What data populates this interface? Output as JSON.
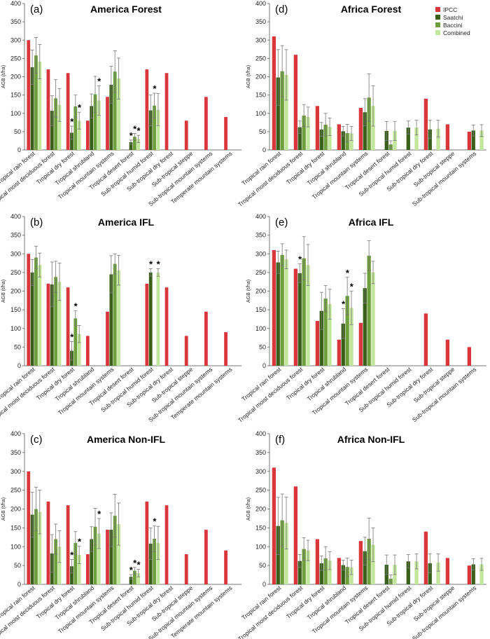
{
  "legend": [
    {
      "name": "IPCC",
      "color": "#d9373c"
    },
    {
      "name": "Saatchi",
      "color": "#3a5f1a"
    },
    {
      "name": "Baccini",
      "color": "#6f9e3d"
    },
    {
      "name": "Combined",
      "color": "#c3e69d"
    }
  ],
  "chart_data": [
    {
      "type": "bar",
      "panel_label": "(a)",
      "title": "America Forest",
      "ylabel": "AGB (t/ha)",
      "ylim": [
        0,
        400
      ],
      "yticks": [
        "0",
        "50",
        "100",
        "150",
        "200",
        "250",
        "300",
        "350",
        "400"
      ],
      "categories": [
        "Tropical rain forest",
        "Tropical moist deciduous forest",
        "Tropical dry forest",
        "Tropical shrubland",
        "Tropical mountain systems",
        "Tropical desert forest",
        "Sub-tropical humid forest",
        "Sub-tropical dry forest",
        "Sub-tropical steppe",
        "Sub-tropical mountain systems",
        "Temperate mountain systems"
      ],
      "series": [
        {
          "name": "IPCC",
          "values": [
            300,
            220,
            210,
            80,
            145,
            null,
            220,
            210,
            80,
            145,
            90
          ]
        },
        {
          "name": "Saatchi",
          "values": [
            226,
            107,
            47,
            120,
            178,
            21,
            108,
            null,
            null,
            null,
            null
          ],
          "err": [
            47,
            41,
            18,
            33,
            51,
            6,
            42,
            null,
            null,
            null,
            null
          ],
          "sig": [
            false,
            false,
            true,
            false,
            false,
            true,
            false,
            false,
            false,
            false,
            false
          ]
        },
        {
          "name": "Baccini",
          "values": [
            258,
            141,
            119,
            152,
            214,
            36,
            121,
            null,
            null,
            null,
            null
          ],
          "err": [
            49,
            51,
            31,
            49,
            57,
            9,
            34,
            null,
            null,
            null,
            null
          ],
          "sig": [
            false,
            false,
            false,
            false,
            false,
            true,
            true,
            false,
            false,
            false,
            false
          ]
        },
        {
          "name": "Combined",
          "values": [
            241,
            123,
            80,
            135,
            195,
            30,
            110,
            null,
            null,
            null,
            null
          ],
          "err": [
            47,
            45,
            23,
            40,
            56,
            10,
            44,
            null,
            null,
            null,
            null
          ],
          "sig": [
            false,
            false,
            true,
            true,
            false,
            true,
            false,
            false,
            false,
            false,
            false
          ]
        }
      ]
    },
    {
      "type": "bar",
      "panel_label": "(d)",
      "title": "Africa Forest",
      "ylabel": "AGB (t/ha)",
      "ylim": [
        0,
        400
      ],
      "yticks": [
        "0",
        "50",
        "100",
        "150",
        "200",
        "250",
        "300",
        "350",
        "400"
      ],
      "categories": [
        "Tropical rain forest",
        "Tropical moist deciduous forest",
        "Tropical dry forest",
        "Tropical shrubland",
        "Tropical mountain systems",
        "Tropical desert forest",
        "Sub-tropical humid forest",
        "Sub-tropical dry forest",
        "Sub-tropical steppe",
        "Sub-tropical mountain systems"
      ],
      "series": [
        {
          "name": "IPCC",
          "values": [
            310,
            260,
            120,
            70,
            115,
            null,
            null,
            140,
            70,
            50
          ]
        },
        {
          "name": "Saatchi",
          "values": [
            198,
            62,
            56,
            51,
            103,
            52,
            61,
            56,
            null,
            53
          ],
          "err": [
            76,
            17,
            19,
            13,
            37,
            26,
            18,
            25,
            null,
            15
          ]
        },
        {
          "name": "Baccini",
          "values": [
            215,
            94,
            69,
            46,
            143,
            15,
            null,
            null,
            null,
            null
          ],
          "err": [
            70,
            30,
            31,
            24,
            65,
            10,
            null,
            null,
            null,
            null
          ]
        },
        {
          "name": "Combined",
          "values": [
            205,
            90,
            63,
            45,
            120,
            52,
            61,
            58,
            null,
            53
          ],
          "err": [
            69,
            27,
            24,
            19,
            55,
            26,
            20,
            23,
            null,
            16
          ]
        }
      ]
    },
    {
      "type": "bar",
      "panel_label": "(b)",
      "title": "America IFL",
      "ylabel": "AGB (t/ha)",
      "ylim": [
        0,
        400
      ],
      "yticks": [
        "0",
        "50",
        "100",
        "150",
        "200",
        "250",
        "300",
        "350",
        "400"
      ],
      "categories": [
        "Tropical rain forest",
        "Tropical moist deciduous forest",
        "Tropical dry forest",
        "Tropical shrubland",
        "Tropical mountain systems",
        "Tropical desert forest",
        "Sub-tropical humid forest",
        "Sub-tropical dry forest",
        "Sub-tropical steppe",
        "Sub-tropical mountain systems",
        "Temperate mountain systems"
      ],
      "series": [
        {
          "name": "IPCC",
          "values": [
            300,
            220,
            210,
            80,
            145,
            null,
            220,
            210,
            80,
            145,
            90
          ]
        },
        {
          "name": "Saatchi",
          "values": [
            250,
            218,
            40,
            null,
            245,
            null,
            250,
            null,
            null,
            null,
            null
          ],
          "err": [
            35,
            60,
            25,
            null,
            50,
            null,
            10,
            null,
            null,
            null,
            null
          ],
          "sig": [
            false,
            false,
            true,
            false,
            false,
            false,
            true,
            false,
            false,
            false,
            false
          ]
        },
        {
          "name": "Baccini",
          "values": [
            290,
            238,
            127,
            null,
            273,
            null,
            null,
            null,
            null,
            null,
            null
          ],
          "err": [
            30,
            42,
            20,
            null,
            27,
            null,
            null,
            null,
            null,
            null,
            null
          ],
          "sig": [
            false,
            false,
            true,
            false,
            false,
            false,
            false,
            false,
            false,
            false,
            false
          ]
        },
        {
          "name": "Combined",
          "values": [
            270,
            225,
            85,
            null,
            256,
            null,
            250,
            null,
            null,
            null,
            null
          ],
          "err": [
            32,
            50,
            23,
            null,
            40,
            null,
            10,
            null,
            null,
            null,
            null
          ],
          "sig": [
            false,
            false,
            false,
            false,
            false,
            false,
            true,
            false,
            false,
            false,
            false
          ]
        }
      ]
    },
    {
      "type": "bar",
      "panel_label": "(e)",
      "title": "Africa IFL",
      "ylabel": "AGB (t/ha)",
      "ylim": [
        0,
        400
      ],
      "yticks": [
        "0",
        "50",
        "100",
        "150",
        "200",
        "250",
        "300",
        "350",
        "400"
      ],
      "categories": [
        "Tropical rain forest",
        "Tropical moist deciduous forest",
        "Tropical dry forest",
        "Tropical shrubland",
        "Tropical mountain systems",
        "Tropical desert forest",
        "Sub-tropical humid forest",
        "Sub-tropical dry forest",
        "Sub-tropical steppe",
        "Sub-tropical mountain systems"
      ],
      "series": [
        {
          "name": "IPCC",
          "values": [
            310,
            260,
            120,
            70,
            115,
            null,
            null,
            140,
            70,
            50
          ]
        },
        {
          "name": "Saatchi",
          "values": [
            277,
            248,
            147,
            113,
            208,
            null,
            null,
            null,
            null,
            null
          ],
          "err": [
            30,
            25,
            50,
            40,
            40,
            null,
            null,
            null,
            null,
            null
          ],
          "sig": [
            false,
            true,
            false,
            true,
            false,
            false,
            false,
            false,
            false,
            false
          ]
        },
        {
          "name": "Baccini",
          "values": [
            297,
            288,
            180,
            187,
            295,
            null,
            null,
            null,
            null,
            null
          ],
          "err": [
            30,
            58,
            35,
            50,
            40,
            null,
            null,
            null,
            null,
            null
          ],
          "sig": [
            false,
            false,
            false,
            true,
            false,
            false,
            false,
            false,
            false,
            false
          ]
        },
        {
          "name": "Combined",
          "values": [
            285,
            270,
            165,
            155,
            250,
            null,
            null,
            null,
            null,
            null
          ],
          "err": [
            25,
            55,
            40,
            45,
            30,
            null,
            null,
            null,
            null,
            null
          ],
          "sig": [
            false,
            false,
            false,
            true,
            false,
            false,
            false,
            false,
            false,
            false
          ]
        }
      ]
    },
    {
      "type": "bar",
      "panel_label": "(c)",
      "title": "America Non-IFL",
      "ylabel": "AGB (t/ha)",
      "ylim": [
        0,
        400
      ],
      "yticks": [
        "0",
        "50",
        "100",
        "150",
        "200",
        "250",
        "300",
        "350",
        "400"
      ],
      "categories": [
        "Tropical rain forest",
        "Tropical moist deciduous forest",
        "Tropical dry forest",
        "Tropical shrubland",
        "Tropical mountain systems",
        "Tropical desert forest",
        "Sub-tropical humid forest",
        "Sub-tropical dry forest",
        "Sub-tropical steppe",
        "Sub-tropical mountain systems",
        "Temperate mountain systems"
      ],
      "series": [
        {
          "name": "IPCC",
          "values": [
            300,
            220,
            210,
            80,
            145,
            null,
            220,
            210,
            80,
            145,
            90
          ]
        },
        {
          "name": "Saatchi",
          "values": [
            185,
            82,
            48,
            120,
            145,
            20,
            108,
            null,
            null,
            null,
            null
          ],
          "err": [
            60,
            50,
            18,
            33,
            45,
            6,
            42,
            null,
            null,
            null,
            null
          ],
          "sig": [
            false,
            false,
            true,
            false,
            false,
            true,
            false,
            false,
            false,
            false,
            false
          ]
        },
        {
          "name": "Baccini",
          "values": [
            200,
            120,
            110,
            153,
            182,
            36,
            121,
            null,
            null,
            null,
            null
          ],
          "err": [
            58,
            40,
            30,
            49,
            57,
            9,
            34,
            null,
            null,
            null,
            null
          ],
          "sig": [
            false,
            false,
            false,
            false,
            false,
            true,
            true,
            false,
            false,
            false,
            false
          ]
        },
        {
          "name": "Combined",
          "values": [
            192,
            100,
            78,
            135,
            160,
            30,
            110,
            null,
            null,
            null,
            null
          ],
          "err": [
            58,
            42,
            23,
            40,
            56,
            10,
            44,
            null,
            null,
            null,
            null
          ],
          "sig": [
            false,
            false,
            true,
            true,
            false,
            true,
            false,
            false,
            false,
            false,
            false
          ]
        }
      ]
    },
    {
      "type": "bar",
      "panel_label": "(f)",
      "title": "Africa Non-IFL",
      "ylabel": "AGB (t/ha)",
      "ylim": [
        0,
        400
      ],
      "yticks": [
        "0",
        "50",
        "100",
        "150",
        "200",
        "250",
        "300",
        "350",
        "400"
      ],
      "categories": [
        "Tropical rain forest",
        "Tropical moist deciduous forest",
        "Tropical dry forest",
        "Tropical shrubland",
        "Tropical mountain systems",
        "Tropical desert forest",
        "Sub-tropical humid forest",
        "Sub-tropical dry forest",
        "Sub-tropical steppe",
        "Sub-tropical mountain systems"
      ],
      "series": [
        {
          "name": "IPCC",
          "values": [
            310,
            260,
            120,
            70,
            115,
            null,
            null,
            140,
            70,
            50
          ]
        },
        {
          "name": "Saatchi",
          "values": [
            155,
            62,
            56,
            51,
            88,
            52,
            61,
            56,
            null,
            53
          ],
          "err": [
            76,
            17,
            19,
            13,
            37,
            26,
            18,
            25,
            null,
            15
          ]
        },
        {
          "name": "Baccini",
          "values": [
            170,
            94,
            69,
            46,
            121,
            15,
            null,
            null,
            null,
            null
          ],
          "err": [
            70,
            30,
            31,
            24,
            55,
            10,
            null,
            null,
            null,
            null
          ]
        },
        {
          "name": "Combined",
          "values": [
            163,
            90,
            63,
            45,
            105,
            52,
            61,
            58,
            null,
            53
          ],
          "err": [
            69,
            27,
            24,
            19,
            45,
            26,
            20,
            23,
            null,
            16
          ]
        }
      ]
    }
  ]
}
